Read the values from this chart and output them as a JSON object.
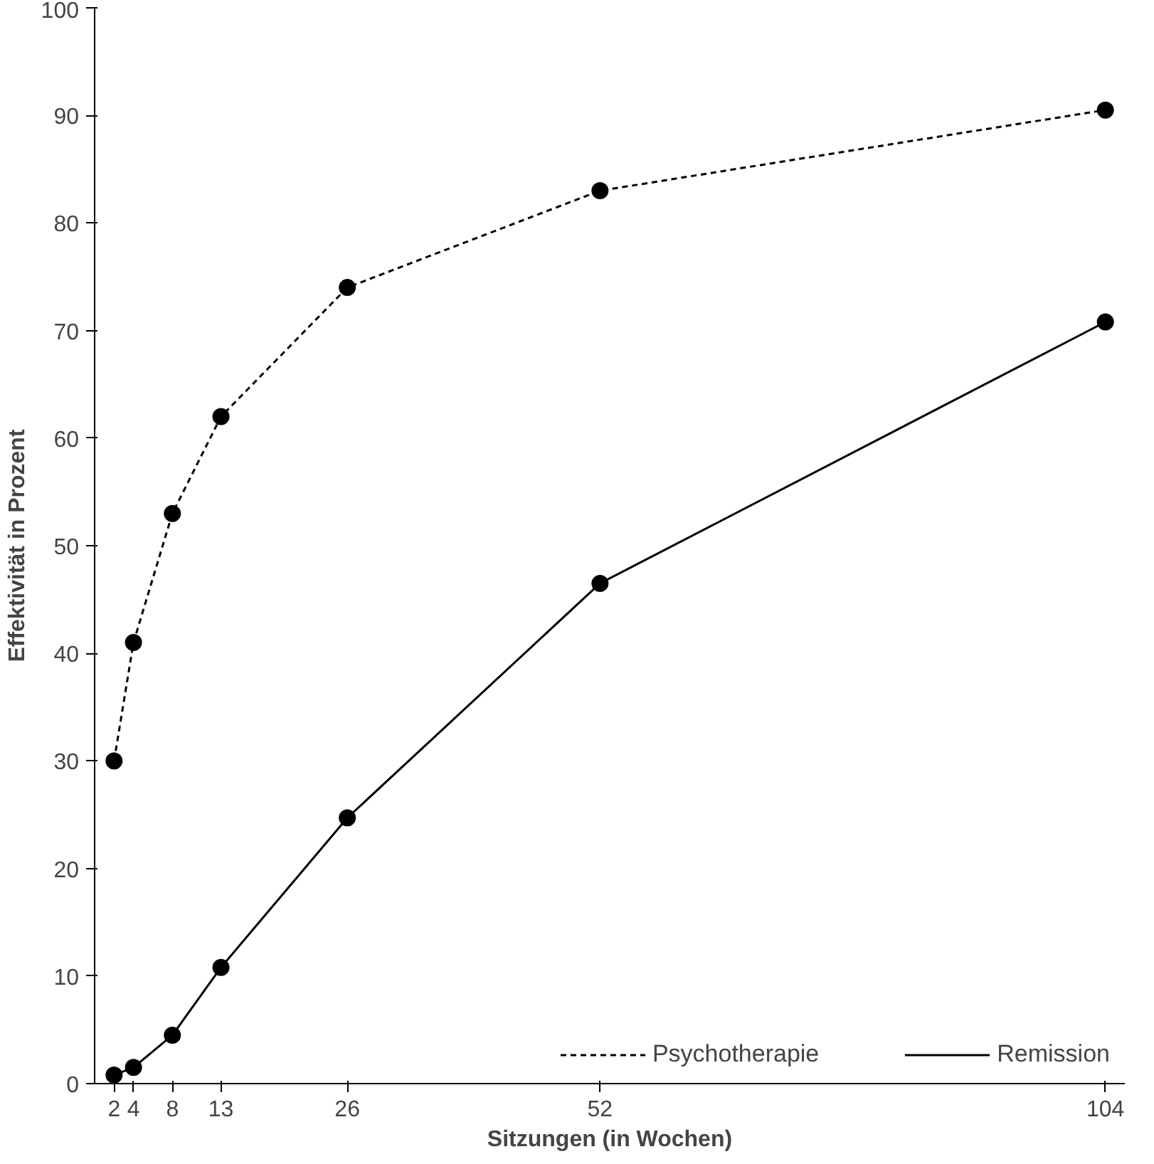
{
  "chart_data": {
    "type": "line",
    "xlabel": "Sitzungen (in Wochen)",
    "ylabel": "Effektivität in Prozent",
    "x": [
      2,
      4,
      8,
      13,
      26,
      52,
      104
    ],
    "series": [
      {
        "name": "Psychotherapie",
        "color": "#000000",
        "line_style": "dashed",
        "values": [
          30,
          41,
          53,
          62,
          74,
          83,
          90.5
        ]
      },
      {
        "name": "Remission",
        "color": "#000000",
        "line_style": "solid",
        "values": [
          0.8,
          1.5,
          4.5,
          10.8,
          24.7,
          46.5,
          70.8
        ]
      }
    ],
    "xlim": [
      0,
      106
    ],
    "ylim": [
      0,
      100
    ],
    "xticks": [
      2,
      4,
      8,
      13,
      26,
      52,
      104
    ],
    "yticks": [
      0,
      10,
      20,
      30,
      40,
      50,
      60,
      70,
      80,
      90,
      100
    ],
    "marker": "circle",
    "grid": false,
    "legend": "bottom right"
  }
}
